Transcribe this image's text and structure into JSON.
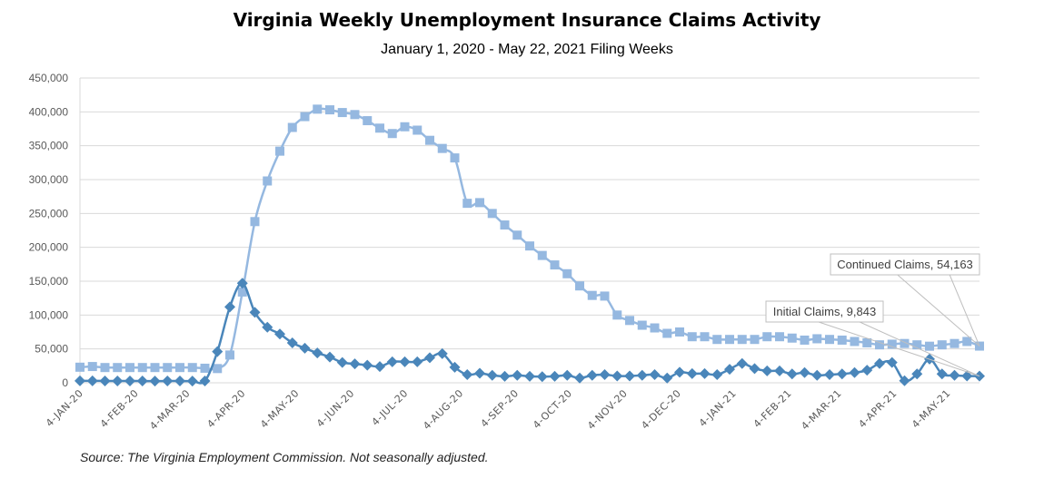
{
  "chart_data": {
    "type": "line",
    "title": "Virginia Weekly Unemployment Insurance Claims Activity",
    "subtitle": "January 1, 2020 - May 22, 2021 Filing Weeks",
    "source": "Source: The Virginia Employment Commission. Not seasonally adjusted.",
    "x_start": "2020-01-04",
    "x_frequency": "weekly",
    "ylim": [
      0,
      450000
    ],
    "y_ticks": [
      "0",
      "50,000",
      "100,000",
      "150,000",
      "200,000",
      "250,000",
      "300,000",
      "350,000",
      "400,000",
      "450,000"
    ],
    "x_tick_labels": [
      "4-JAN-20",
      "4-FEB-20",
      "4-MAR-20",
      "4-APR-20",
      "4-MAY-20",
      "4-JUN-20",
      "4-JUL-20",
      "4-AUG-20",
      "4-SEP-20",
      "4-OCT-20",
      "4-NOV-20",
      "4-DEC-20",
      "4-JAN-21",
      "4-FEB-21",
      "4-MAR-21",
      "4-APR-21",
      "4-MAY-21"
    ],
    "grid": true,
    "legend": "none",
    "series": [
      {
        "name": "Continued Claims",
        "color": "#95B8E0",
        "marker": "square",
        "values": [
          23000,
          24000,
          22500,
          22500,
          22500,
          22500,
          22500,
          22500,
          22500,
          22500,
          21500,
          21000,
          41000,
          134000,
          238000,
          298000,
          342000,
          377000,
          393000,
          404000,
          403000,
          399000,
          396000,
          387000,
          376000,
          368000,
          378000,
          373000,
          358000,
          346000,
          332000,
          265000,
          266000,
          250000,
          233000,
          218000,
          202000,
          188000,
          174000,
          161000,
          143000,
          129000,
          128000,
          100000,
          92000,
          85000,
          81000,
          73000,
          75000,
          68000,
          68000,
          64000,
          64000,
          64000,
          64000,
          68000,
          68000,
          66000,
          63000,
          65000,
          64000,
          63000,
          61000,
          59000,
          56000,
          57000,
          58000,
          56000,
          54000,
          56000,
          58000,
          61000,
          54163
        ],
        "annotation": "Continued Claims, 54,163"
      },
      {
        "name": "Initial Claims",
        "color": "#4A86BA",
        "marker": "diamond",
        "values": [
          2800,
          2900,
          2700,
          2600,
          2700,
          2600,
          2500,
          2600,
          2600,
          2500,
          2700,
          46000,
          112000,
          147000,
          104000,
          82000,
          72000,
          59000,
          51000,
          44000,
          38000,
          30000,
          28000,
          26000,
          24000,
          31000,
          31000,
          31000,
          37000,
          43000,
          23000,
          12000,
          14000,
          11000,
          9500,
          11000,
          9500,
          9000,
          9500,
          11000,
          7000,
          11000,
          12000,
          10000,
          10000,
          11000,
          12000,
          7000,
          15500,
          13500,
          13500,
          12000,
          20000,
          28500,
          21000,
          17500,
          17500,
          13000,
          15000,
          11000,
          12000,
          13000,
          15000,
          18500,
          28500,
          30000,
          3000,
          13000,
          35000,
          13000,
          11000,
          10000,
          9843
        ],
        "annotation": "Initial Claims, 9,843"
      }
    ]
  }
}
